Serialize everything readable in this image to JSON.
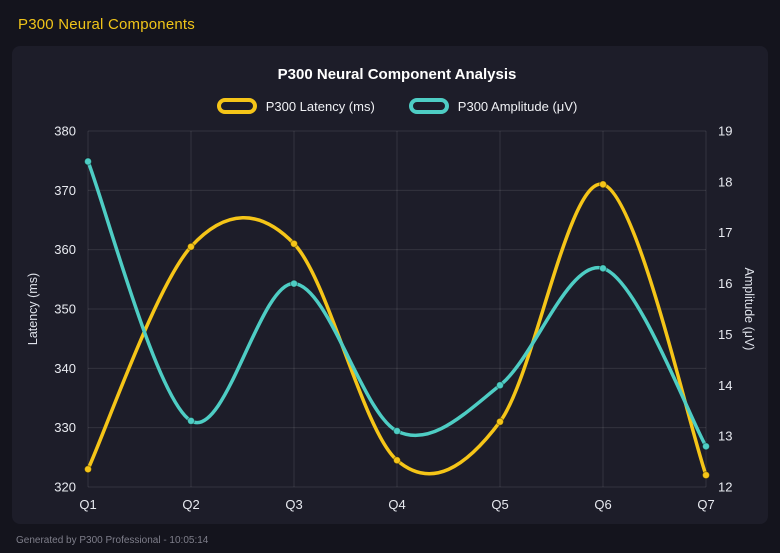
{
  "header": {
    "title": "P300 Neural Components"
  },
  "footer": {
    "note": "Generated by P300 Professional - 10:05:14"
  },
  "chart_data": {
    "type": "line",
    "title": "P300 Neural Component Analysis",
    "categories": [
      "Q1",
      "Q2",
      "Q3",
      "Q4",
      "Q5",
      "Q6",
      "Q7"
    ],
    "series": [
      {
        "name": "P300 Latency (ms)",
        "axis": "left",
        "color": "#f5c518",
        "values": [
          323,
          360.5,
          361,
          324.5,
          331,
          371,
          322
        ]
      },
      {
        "name": "P300 Amplitude (μV)",
        "axis": "right",
        "color": "#4ecdc4",
        "values": [
          18.4,
          13.3,
          16.0,
          13.1,
          14.0,
          16.3,
          12.8
        ]
      }
    ],
    "left_axis": {
      "label": "Latency (ms)",
      "min": 320,
      "max": 380,
      "step": 10
    },
    "right_axis": {
      "label": "Amplitude (μV)",
      "min": 12,
      "max": 19,
      "step": 1
    },
    "grid": true,
    "legend_position": "top",
    "line_smoothing": "catmull-rom"
  }
}
